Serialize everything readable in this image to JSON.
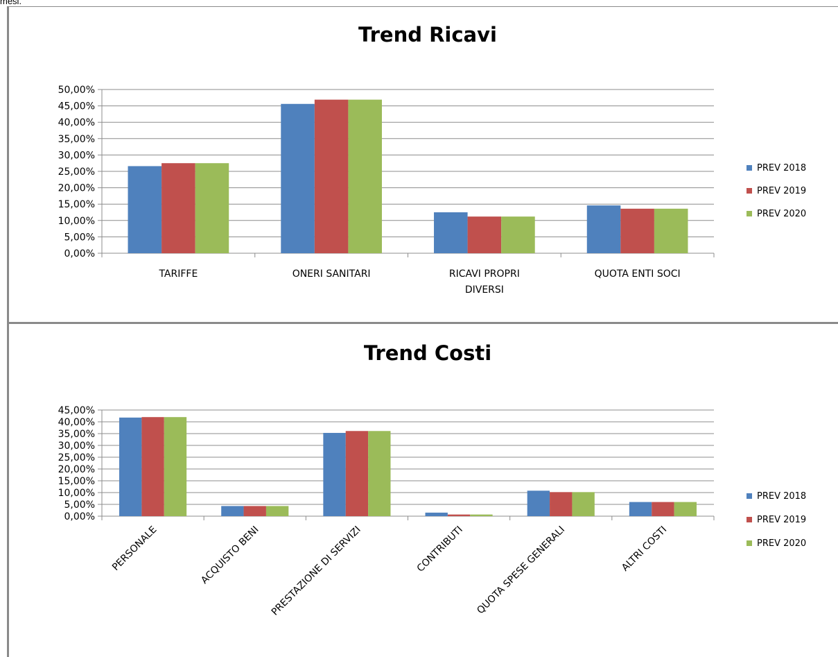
{
  "page": {
    "top_text": "mesi."
  },
  "chart_data": [
    {
      "type": "bar",
      "title": "Trend Ricavi",
      "categories": [
        "TARIFFE",
        "ONERI SANITARI",
        "RICAVI PROPRI DIVERSI",
        "QUOTA ENTI SOCI"
      ],
      "series": [
        {
          "name": "PREV 2018",
          "color": "#4f81bd",
          "values": [
            26.6,
            45.6,
            12.5,
            14.6
          ]
        },
        {
          "name": "PREV 2019",
          "color": "#c0504d",
          "values": [
            27.5,
            46.9,
            11.2,
            13.6
          ]
        },
        {
          "name": "PREV 2020",
          "color": "#9bbb59",
          "values": [
            27.5,
            46.9,
            11.2,
            13.6
          ]
        }
      ],
      "ylim": [
        0,
        50
      ],
      "ytick_labels": [
        "0,00%",
        "5,00%",
        "10,00%",
        "15,00%",
        "20,00%",
        "25,00%",
        "30,00%",
        "35,00%",
        "40,00%",
        "45,00%",
        "50,00%"
      ],
      "grid": true,
      "legend": "right"
    },
    {
      "type": "bar",
      "title": "Trend Costi",
      "categories": [
        "PERSONALE",
        "ACQUISTO BENI",
        "PRESTAZIONE DI SERVIZI",
        "CONTRIBUTI",
        "QUOTA SPESE GENERALI",
        "ALTRI COSTI"
      ],
      "series": [
        {
          "name": "PREV 2018",
          "color": "#4f81bd",
          "values": [
            41.8,
            4.3,
            35.3,
            1.5,
            10.8,
            6.0
          ]
        },
        {
          "name": "PREV 2019",
          "color": "#c0504d",
          "values": [
            42.0,
            4.3,
            36.1,
            0.7,
            10.2,
            6.0
          ]
        },
        {
          "name": "PREV 2020",
          "color": "#9bbb59",
          "values": [
            42.0,
            4.3,
            36.1,
            0.7,
            10.2,
            6.0
          ]
        }
      ],
      "ylim": [
        0,
        45
      ],
      "ytick_labels": [
        "0,00%",
        "5,00%",
        "10,00%",
        "15,00%",
        "20,00%",
        "25,00%",
        "30,00%",
        "35,00%",
        "40,00%",
        "45,00%"
      ],
      "grid": true,
      "legend": "right"
    }
  ]
}
